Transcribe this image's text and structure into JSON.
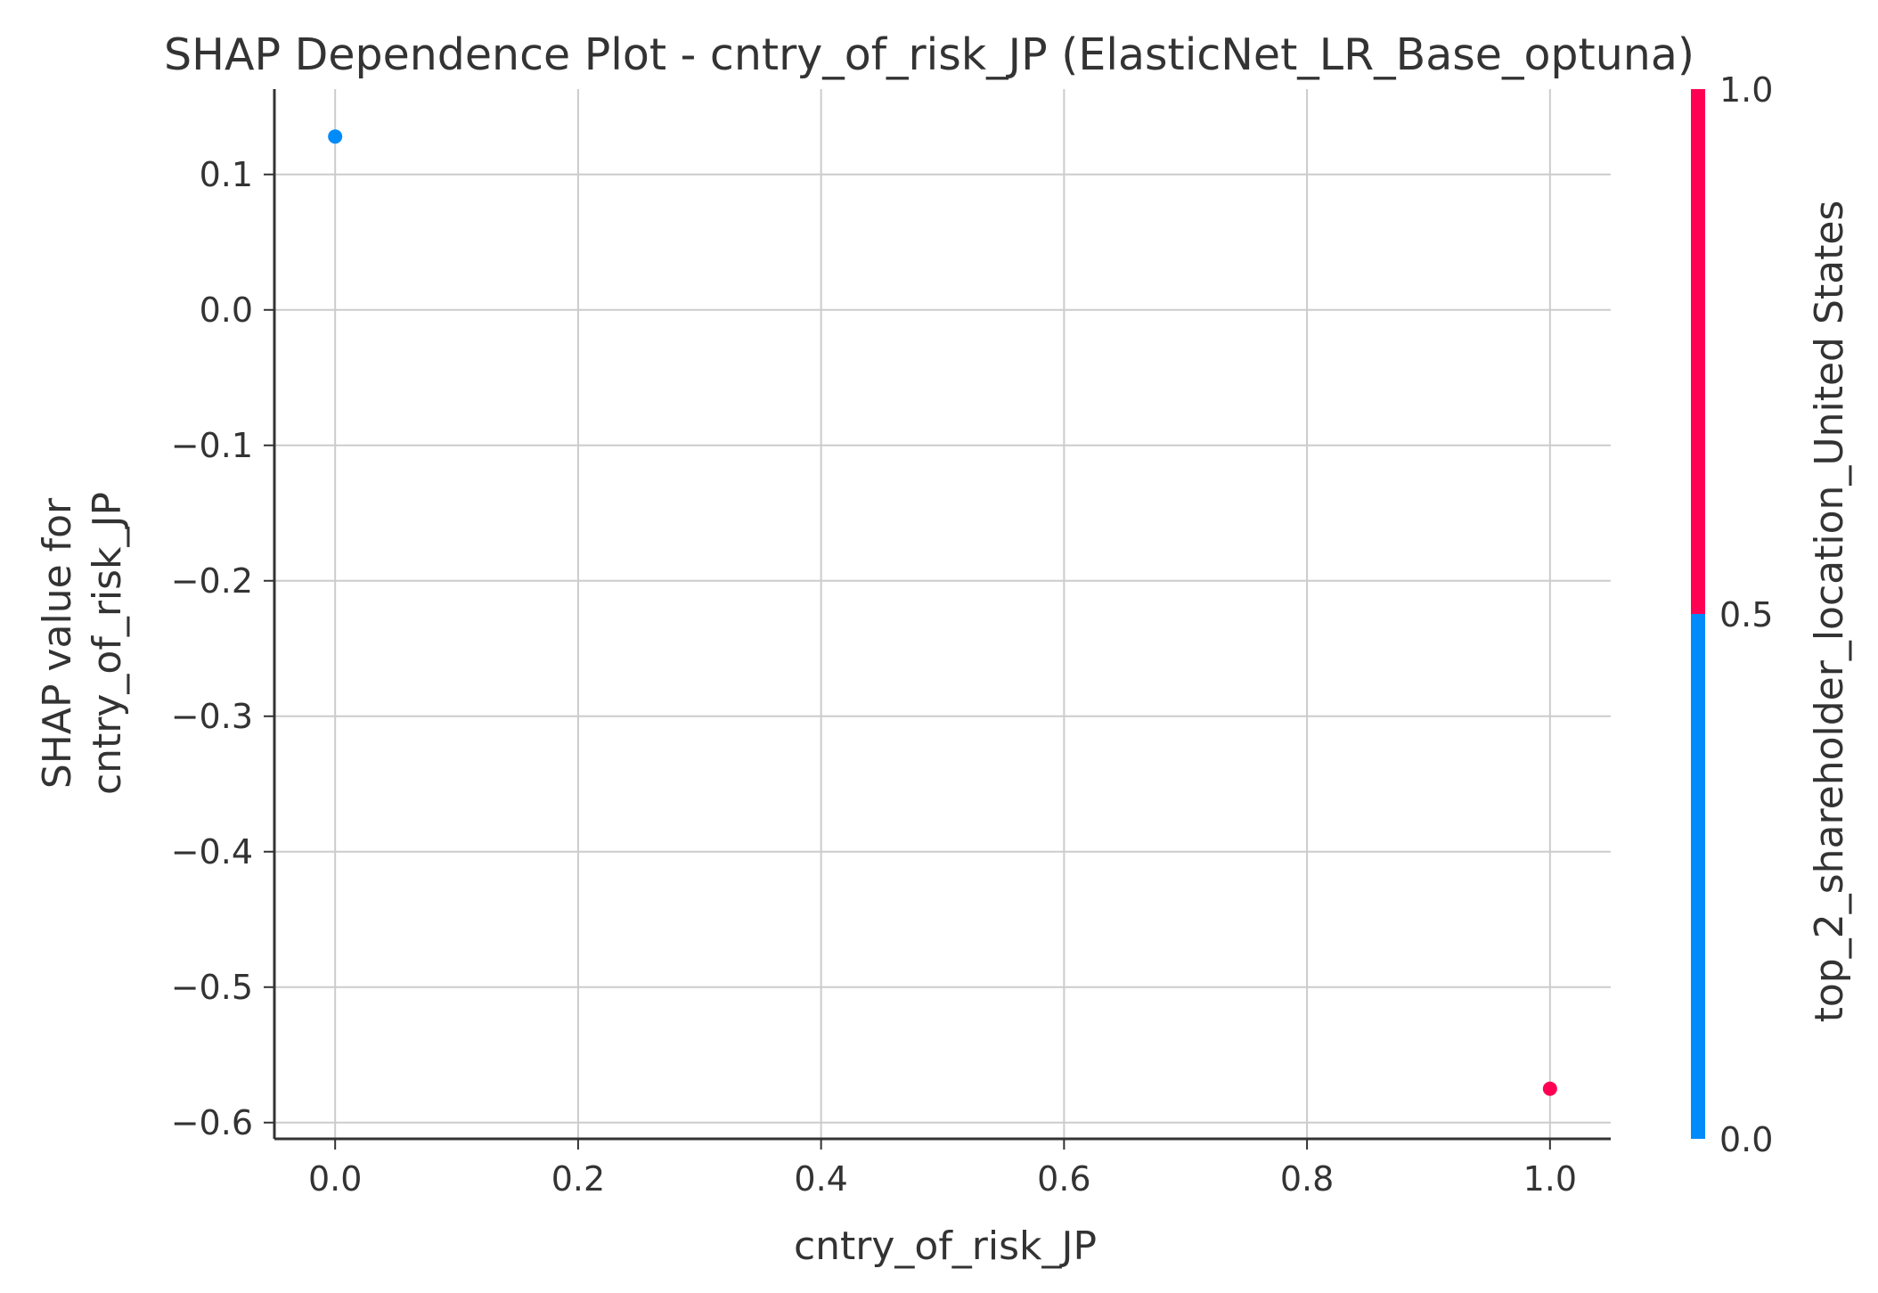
{
  "chart_data": {
    "type": "scatter",
    "title": "SHAP Dependence Plot - cntry_of_risk_JP (ElasticNet_LR_Base_optuna)",
    "xlabel": "cntry_of_risk_JP",
    "ylabel_lines": [
      "SHAP value for",
      "cntry_of_risk_JP"
    ],
    "xlim": [
      -0.05,
      1.05
    ],
    "ylim": [
      -0.612,
      0.163
    ],
    "xticks": [
      0.0,
      0.2,
      0.4,
      0.6,
      0.8,
      1.0
    ],
    "xtick_labels": [
      "0.0",
      "0.2",
      "0.4",
      "0.6",
      "0.8",
      "1.0"
    ],
    "yticks": [
      0.1,
      0.0,
      -0.1,
      -0.2,
      -0.3,
      -0.4,
      -0.5,
      -0.6
    ],
    "ytick_labels": [
      "0.1",
      "0.0",
      "−0.1",
      "−0.2",
      "−0.3",
      "−0.4",
      "−0.5",
      "−0.6"
    ],
    "grid": true,
    "points": [
      {
        "x": 0.0,
        "y": 0.128,
        "color_value": 0.0
      },
      {
        "x": 1.0,
        "y": -0.575,
        "color_value": 1.0
      }
    ],
    "colorbar": {
      "label": "top_2_shareholder_location_United States",
      "range": [
        0.0,
        1.0
      ],
      "ticks": [
        0.0,
        0.5,
        1.0
      ],
      "tick_labels": [
        "0.0",
        "0.5",
        "1.0"
      ],
      "low_color": "#008bfb",
      "high_color": "#ff0052"
    }
  }
}
